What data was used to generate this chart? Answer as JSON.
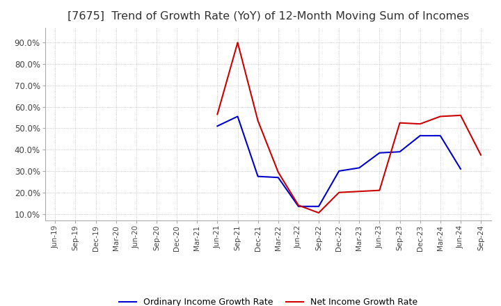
{
  "title": "[7675]  Trend of Growth Rate (YoY) of 12-Month Moving Sum of Incomes",
  "title_fontsize": 11.5,
  "ylim": [
    0.07,
    0.97
  ],
  "yticks": [
    0.1,
    0.2,
    0.3,
    0.4,
    0.5,
    0.6,
    0.7,
    0.8,
    0.9
  ],
  "ytick_labels": [
    "10.0%",
    "20.0%",
    "30.0%",
    "40.0%",
    "50.0%",
    "60.0%",
    "70.0%",
    "80.0%",
    "90.0%"
  ],
  "background_color": "#ffffff",
  "grid_color": "#bbbbbb",
  "x_labels": [
    "Jun-19",
    "Sep-19",
    "Dec-19",
    "Mar-20",
    "Jun-20",
    "Sep-20",
    "Dec-20",
    "Mar-21",
    "Jun-21",
    "Sep-21",
    "Dec-21",
    "Mar-22",
    "Jun-22",
    "Sep-22",
    "Dec-22",
    "Mar-23",
    "Jun-23",
    "Sep-23",
    "Dec-23",
    "Mar-24",
    "Jun-24",
    "Sep-24"
  ],
  "ordinary_income": [
    null,
    null,
    null,
    null,
    null,
    null,
    null,
    null,
    0.51,
    0.555,
    0.275,
    0.27,
    0.135,
    0.135,
    0.3,
    0.315,
    0.385,
    0.39,
    0.465,
    0.465,
    0.31,
    null
  ],
  "net_income": [
    null,
    null,
    null,
    null,
    null,
    null,
    null,
    null,
    0.565,
    0.9,
    0.535,
    0.295,
    0.14,
    0.105,
    0.2,
    0.205,
    0.21,
    0.525,
    0.52,
    0.555,
    0.56,
    0.375
  ],
  "ordinary_color": "#0000cc",
  "net_color": "#cc0000",
  "legend_labels": [
    "Ordinary Income Growth Rate",
    "Net Income Growth Rate"
  ],
  "line_width": 1.5
}
